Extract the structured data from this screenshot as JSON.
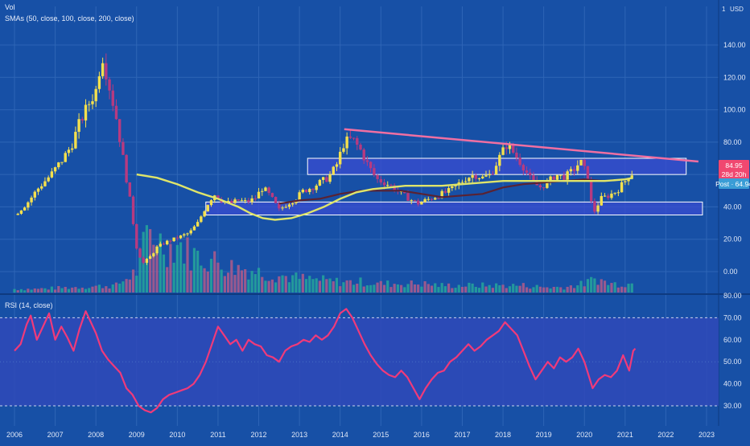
{
  "header": {
    "vol_label": "Vol",
    "sma_label": "SMAs (50, close, 100, close, 200, close)",
    "rsi_label": "RSI (14, close)"
  },
  "price_axis": {
    "currency": "USD",
    "top_tick": "1",
    "ticks": [
      "140.00",
      "120.00",
      "100.00",
      "80.00",
      "60.00",
      "40.00",
      "20.00",
      "0.00"
    ],
    "tick_values": [
      140,
      120,
      100,
      80,
      60,
      40,
      20,
      0
    ]
  },
  "rsi_axis": {
    "ticks": [
      "80.00",
      "70.00",
      "60.00",
      "50.00",
      "40.00",
      "30.00"
    ],
    "tick_values": [
      80,
      70,
      60,
      50,
      40,
      30
    ]
  },
  "badges": {
    "price": "84.95",
    "countdown": "28d 20h",
    "post": "Post · 64.94"
  },
  "time_axis": {
    "labels": [
      "2006",
      "2007",
      "2008",
      "2009",
      "2010",
      "2011",
      "2012",
      "2013",
      "2014",
      "2015",
      "2016",
      "2017",
      "2018",
      "2019",
      "2020",
      "2021",
      "2022",
      "2023"
    ]
  },
  "colors": {
    "background": "#1750a6",
    "grid": "#2e65b6",
    "up": "#f4e04d",
    "down": "#b73a80",
    "rsi": "#f03a7a",
    "rsi_band": "#2f49b8",
    "sma_yellow": "#dfe56a",
    "sma_dark": "#5a2232",
    "trendline": "#f06fa2",
    "zone_fill": "#3a4cd0",
    "zone_stroke": "#ffffff",
    "badge_price": "#f04870",
    "badge_countdown": "#f04870",
    "badge_post": "#3a9dd6",
    "vol_up": "#26a69a",
    "vol_down": "#b05a8a"
  },
  "chart_data": [
    {
      "type": "candlestick",
      "x_unit": "year",
      "xlim": [
        2006,
        2023
      ],
      "ylim": [
        -5,
        160
      ],
      "y_scale": "linear",
      "grid": true,
      "price_close": [
        [
          2006.0,
          35
        ],
        [
          2006.3,
          42
        ],
        [
          2006.6,
          52
        ],
        [
          2006.9,
          60
        ],
        [
          2007.2,
          70
        ],
        [
          2007.4,
          78
        ],
        [
          2007.6,
          92
        ],
        [
          2007.85,
          105
        ],
        [
          2008.0,
          112
        ],
        [
          2008.15,
          135
        ],
        [
          2008.3,
          118
        ],
        [
          2008.5,
          95
        ],
        [
          2008.7,
          65
        ],
        [
          2008.85,
          42
        ],
        [
          2009.0,
          15
        ],
        [
          2009.15,
          5
        ],
        [
          2009.3,
          8
        ],
        [
          2009.5,
          15
        ],
        [
          2009.7,
          18
        ],
        [
          2009.9,
          20
        ],
        [
          2010.1,
          22
        ],
        [
          2010.3,
          24
        ],
        [
          2010.5,
          30
        ],
        [
          2010.7,
          40
        ],
        [
          2010.9,
          48
        ],
        [
          2011.1,
          44
        ],
        [
          2011.3,
          42
        ],
        [
          2011.5,
          44
        ],
        [
          2011.7,
          43
        ],
        [
          2011.9,
          45
        ],
        [
          2012.1,
          52
        ],
        [
          2012.3,
          46
        ],
        [
          2012.5,
          38
        ],
        [
          2012.7,
          42
        ],
        [
          2012.9,
          45
        ],
        [
          2013.1,
          50
        ],
        [
          2013.3,
          52
        ],
        [
          2013.5,
          55
        ],
        [
          2013.7,
          58
        ],
        [
          2013.9,
          65
        ],
        [
          2014.1,
          80
        ],
        [
          2014.3,
          82
        ],
        [
          2014.5,
          75
        ],
        [
          2014.7,
          65
        ],
        [
          2014.9,
          57
        ],
        [
          2015.1,
          55
        ],
        [
          2015.3,
          52
        ],
        [
          2015.5,
          48
        ],
        [
          2015.7,
          45
        ],
        [
          2015.9,
          42
        ],
        [
          2016.1,
          44
        ],
        [
          2016.3,
          46
        ],
        [
          2016.5,
          48
        ],
        [
          2016.7,
          50
        ],
        [
          2016.9,
          54
        ],
        [
          2017.1,
          58
        ],
        [
          2017.3,
          60
        ],
        [
          2017.5,
          58
        ],
        [
          2017.7,
          60
        ],
        [
          2017.9,
          70
        ],
        [
          2018.1,
          79
        ],
        [
          2018.3,
          72
        ],
        [
          2018.5,
          65
        ],
        [
          2018.7,
          56
        ],
        [
          2018.9,
          52
        ],
        [
          2019.1,
          55
        ],
        [
          2019.3,
          60
        ],
        [
          2019.5,
          58
        ],
        [
          2019.7,
          62
        ],
        [
          2019.9,
          68
        ],
        [
          2020.1,
          58
        ],
        [
          2020.2,
          35
        ],
        [
          2020.4,
          45
        ],
        [
          2020.6,
          47
        ],
        [
          2020.8,
          50
        ],
        [
          2021.0,
          56
        ],
        [
          2021.1,
          60
        ],
        [
          2021.2,
          61
        ]
      ],
      "volume": [
        [
          2006.5,
          2
        ],
        [
          2007.5,
          3
        ],
        [
          2008.5,
          4
        ],
        [
          2009.0,
          12
        ],
        [
          2009.3,
          35
        ],
        [
          2009.5,
          30
        ],
        [
          2009.8,
          25
        ],
        [
          2010.0,
          28
        ],
        [
          2010.3,
          22
        ],
        [
          2010.6,
          20
        ],
        [
          2010.9,
          18
        ],
        [
          2011.2,
          15
        ],
        [
          2011.5,
          14
        ],
        [
          2011.8,
          13
        ],
        [
          2012.1,
          11
        ],
        [
          2012.4,
          10
        ],
        [
          2012.7,
          9
        ],
        [
          2013.0,
          8
        ],
        [
          2013.5,
          7
        ],
        [
          2014.0,
          6
        ],
        [
          2014.5,
          6
        ],
        [
          2015.0,
          5
        ],
        [
          2015.5,
          5
        ],
        [
          2016.0,
          5
        ],
        [
          2016.5,
          4
        ],
        [
          2017.0,
          4
        ],
        [
          2017.5,
          4
        ],
        [
          2018.0,
          4
        ],
        [
          2018.5,
          4
        ],
        [
          2019.0,
          3
        ],
        [
          2019.5,
          3
        ],
        [
          2020.0,
          5
        ],
        [
          2020.3,
          8
        ],
        [
          2020.6,
          5
        ],
        [
          2021.0,
          5
        ]
      ],
      "sma_yellow": [
        [
          2009.0,
          60
        ],
        [
          2009.5,
          58
        ],
        [
          2010.0,
          54
        ],
        [
          2010.5,
          49
        ],
        [
          2011.0,
          45
        ],
        [
          2011.5,
          40
        ],
        [
          2011.8,
          36
        ],
        [
          2012.1,
          33
        ],
        [
          2012.4,
          32
        ],
        [
          2012.8,
          33
        ],
        [
          2013.2,
          36
        ],
        [
          2013.6,
          40
        ],
        [
          2014.0,
          45
        ],
        [
          2014.4,
          49
        ],
        [
          2014.8,
          51
        ],
        [
          2015.2,
          52
        ],
        [
          2015.6,
          53
        ],
        [
          2016.0,
          53
        ],
        [
          2016.5,
          53
        ],
        [
          2017.0,
          54
        ],
        [
          2017.5,
          55
        ],
        [
          2018.0,
          56
        ],
        [
          2018.5,
          56
        ],
        [
          2019.0,
          56
        ],
        [
          2019.5,
          56
        ],
        [
          2020.0,
          56
        ],
        [
          2020.5,
          56
        ],
        [
          2021.0,
          57
        ],
        [
          2021.2,
          58
        ]
      ],
      "sma_dark": [
        [
          2012.5,
          42
        ],
        [
          2013.0,
          44
        ],
        [
          2013.5,
          45
        ],
        [
          2014.0,
          48
        ],
        [
          2014.5,
          50
        ],
        [
          2015.0,
          50
        ],
        [
          2015.5,
          50
        ],
        [
          2016.0,
          48
        ],
        [
          2016.5,
          46
        ],
        [
          2017.0,
          47
        ],
        [
          2017.5,
          48
        ],
        [
          2018.0,
          52
        ],
        [
          2018.5,
          54
        ],
        [
          2019.0,
          55
        ],
        [
          2019.5,
          56
        ],
        [
          2020.0,
          57
        ],
        [
          2020.5,
          56
        ],
        [
          2021.0,
          57
        ],
        [
          2021.2,
          58
        ]
      ],
      "trendline": [
        [
          2014.1,
          88
        ],
        [
          2022.8,
          68
        ]
      ],
      "zones": [
        {
          "x": [
            2013.2,
            2022.5
          ],
          "y": [
            60,
            70
          ]
        },
        {
          "x": [
            2010.7,
            2022.9
          ],
          "y": [
            35,
            43
          ]
        }
      ]
    },
    {
      "type": "line",
      "name": "RSI (14, close)",
      "x_unit": "year",
      "xlim": [
        2006,
        2023
      ],
      "ylim": [
        25,
        80
      ],
      "band": [
        30,
        70
      ],
      "series": [
        {
          "name": "RSI (14, close)",
          "points": [
            [
              2006.0,
              55
            ],
            [
              2006.15,
              58
            ],
            [
              2006.3,
              67
            ],
            [
              2006.4,
              71
            ],
            [
              2006.55,
              60
            ],
            [
              2006.7,
              66
            ],
            [
              2006.85,
              72
            ],
            [
              2007.0,
              60
            ],
            [
              2007.15,
              66
            ],
            [
              2007.3,
              61
            ],
            [
              2007.45,
              55
            ],
            [
              2007.6,
              65
            ],
            [
              2007.75,
              73
            ],
            [
              2008.0,
              63
            ],
            [
              2008.15,
              55
            ],
            [
              2008.3,
              51
            ],
            [
              2008.45,
              48
            ],
            [
              2008.6,
              45
            ],
            [
              2008.75,
              38
            ],
            [
              2008.9,
              35
            ],
            [
              2009.05,
              30
            ],
            [
              2009.2,
              28
            ],
            [
              2009.35,
              27
            ],
            [
              2009.5,
              29
            ],
            [
              2009.65,
              33
            ],
            [
              2009.8,
              35
            ],
            [
              2009.95,
              36
            ],
            [
              2010.1,
              37
            ],
            [
              2010.25,
              38
            ],
            [
              2010.4,
              40
            ],
            [
              2010.55,
              44
            ],
            [
              2010.7,
              50
            ],
            [
              2010.85,
              58
            ],
            [
              2011.0,
              66
            ],
            [
              2011.15,
              62
            ],
            [
              2011.3,
              58
            ],
            [
              2011.45,
              60
            ],
            [
              2011.6,
              55
            ],
            [
              2011.75,
              60
            ],
            [
              2011.9,
              58
            ],
            [
              2012.05,
              57
            ],
            [
              2012.2,
              53
            ],
            [
              2012.35,
              52
            ],
            [
              2012.5,
              50
            ],
            [
              2012.65,
              55
            ],
            [
              2012.8,
              57
            ],
            [
              2012.95,
              58
            ],
            [
              2013.1,
              60
            ],
            [
              2013.25,
              59
            ],
            [
              2013.4,
              62
            ],
            [
              2013.55,
              60
            ],
            [
              2013.7,
              62
            ],
            [
              2013.85,
              66
            ],
            [
              2014.0,
              72
            ],
            [
              2014.15,
              74
            ],
            [
              2014.3,
              70
            ],
            [
              2014.45,
              64
            ],
            [
              2014.6,
              58
            ],
            [
              2014.75,
              53
            ],
            [
              2014.9,
              49
            ],
            [
              2015.05,
              46
            ],
            [
              2015.2,
              44
            ],
            [
              2015.35,
              43
            ],
            [
              2015.5,
              46
            ],
            [
              2015.65,
              43
            ],
            [
              2015.8,
              38
            ],
            [
              2015.95,
              33
            ],
            [
              2016.1,
              38
            ],
            [
              2016.25,
              42
            ],
            [
              2016.4,
              45
            ],
            [
              2016.55,
              46
            ],
            [
              2016.7,
              50
            ],
            [
              2016.85,
              52
            ],
            [
              2017.0,
              55
            ],
            [
              2017.15,
              58
            ],
            [
              2017.3,
              55
            ],
            [
              2017.45,
              57
            ],
            [
              2017.6,
              60
            ],
            [
              2017.75,
              62
            ],
            [
              2017.9,
              64
            ],
            [
              2018.05,
              68
            ],
            [
              2018.2,
              65
            ],
            [
              2018.35,
              62
            ],
            [
              2018.5,
              55
            ],
            [
              2018.65,
              48
            ],
            [
              2018.8,
              42
            ],
            [
              2018.95,
              46
            ],
            [
              2019.1,
              50
            ],
            [
              2019.25,
              47
            ],
            [
              2019.4,
              52
            ],
            [
              2019.55,
              50
            ],
            [
              2019.7,
              52
            ],
            [
              2019.85,
              56
            ],
            [
              2020.0,
              50
            ],
            [
              2020.1,
              44
            ],
            [
              2020.2,
              38
            ],
            [
              2020.35,
              42
            ],
            [
              2020.5,
              44
            ],
            [
              2020.65,
              43
            ],
            [
              2020.8,
              46
            ],
            [
              2020.95,
              53
            ],
            [
              2021.1,
              46
            ],
            [
              2021.2,
              55
            ],
            [
              2021.25,
              56
            ]
          ]
        }
      ]
    }
  ]
}
